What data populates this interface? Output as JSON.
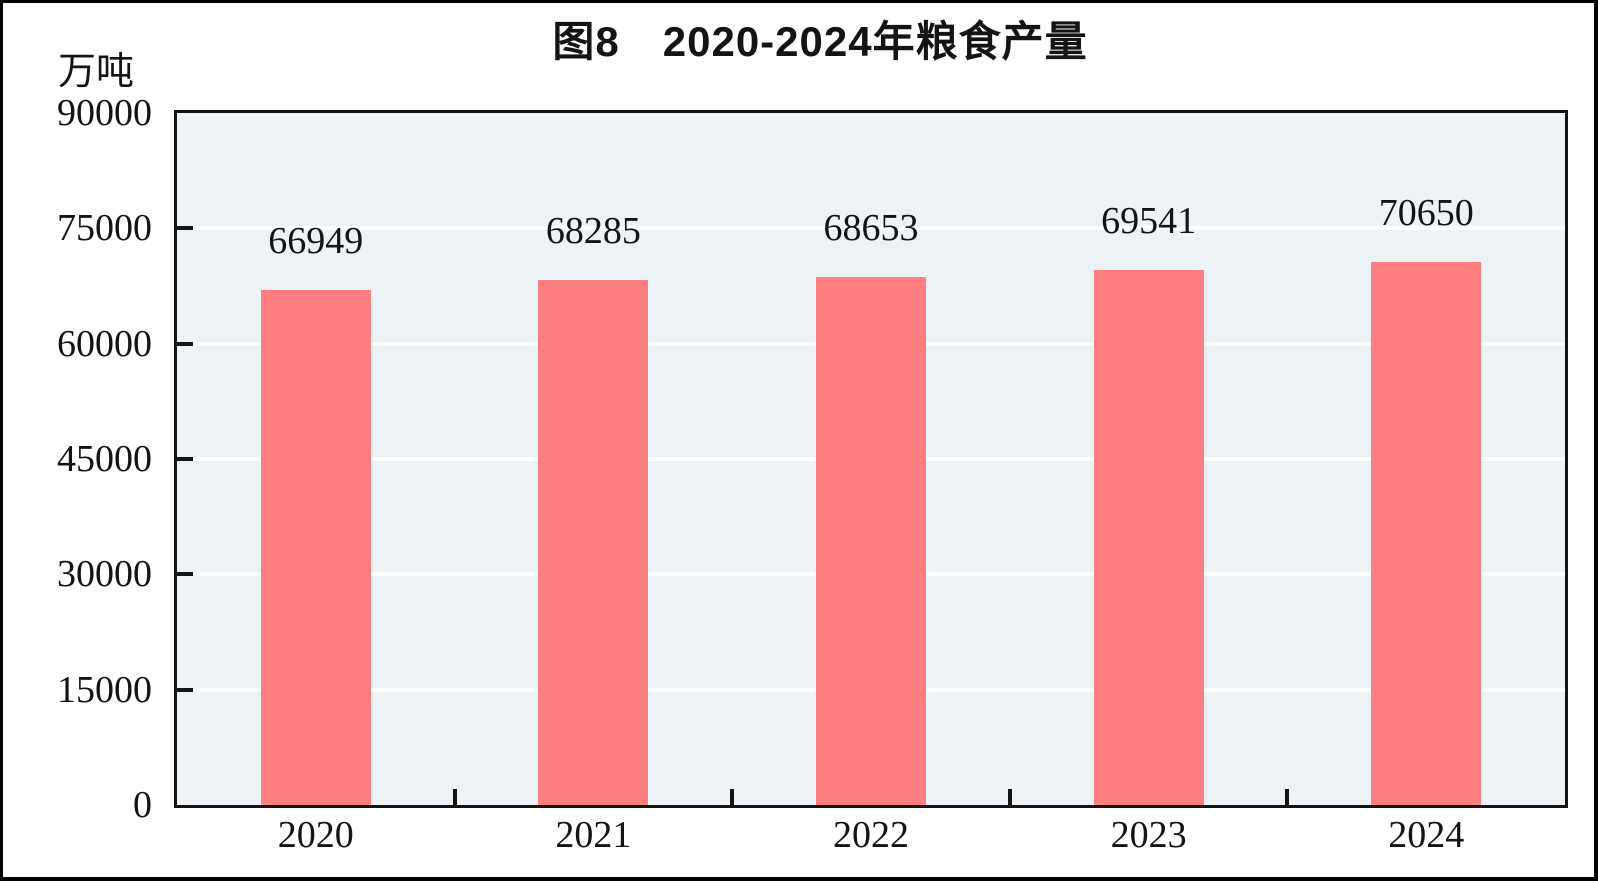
{
  "figure": {
    "title": "图8　2020-2024年粮食产量",
    "unit_label": "万吨"
  },
  "chart_data": {
    "type": "bar",
    "title": "图8　2020-2024年粮食产量",
    "categories": [
      "2020",
      "2021",
      "2022",
      "2023",
      "2024"
    ],
    "values": [
      66949,
      68285,
      68653,
      69541,
      70650
    ],
    "data_labels": [
      "66949",
      "68285",
      "68653",
      "69541",
      "70650"
    ],
    "xlabel": "",
    "ylabel": "万吨",
    "ylim": [
      0,
      90000
    ],
    "ytick_interval": 15000,
    "ytick_labels": [
      "0",
      "15000",
      "30000",
      "45000",
      "60000",
      "75000",
      "90000"
    ],
    "grid": true,
    "legend": false,
    "colors": {
      "bar_fill": "#FC7E7E",
      "plot_background": "#ECF2F6",
      "gridline": "#FFFFFF",
      "axis_frame": "#141414",
      "text": "#141414"
    }
  }
}
